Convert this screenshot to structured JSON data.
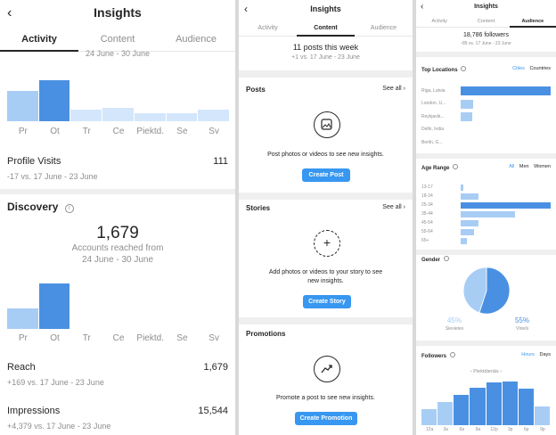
{
  "colors": {
    "accent": "#3897f0",
    "bar_dark": "#4a90e2",
    "bar_light": "#a8cdf5",
    "bar_faint": "#d3e6fb"
  },
  "p1": {
    "title": "Insights",
    "back_icon": "chevron-left-icon",
    "tabs": [
      "Activity",
      "Content",
      "Audience"
    ],
    "top_range": "24 June - 30 June",
    "days": [
      "Pr",
      "Ot",
      "Tr",
      "Ce",
      "Piektd.",
      "Se",
      "Sv"
    ],
    "chart1_levels": [
      0.52,
      0.7,
      0.2,
      0.22,
      0.13,
      0.14,
      0.2
    ],
    "profile_visits_label": "Profile Visits",
    "profile_visits_value": "111",
    "profile_visits_change": "-17 vs. 17 June - 23 June",
    "discovery_title": "Discovery",
    "reach_count": "1,679",
    "reach_text_1": "Accounts reached from",
    "reach_text_2": "24 June - 30 June",
    "chart2_levels": [
      0.46,
      1.0,
      0.0,
      0.0,
      0.0,
      0.0,
      0.0
    ],
    "reach_label": "Reach",
    "reach_value": "1,679",
    "reach_change": "+169 vs. 17 June - 23 June",
    "impressions_label": "Impressions",
    "impressions_value": "15,544",
    "impressions_change": "+4,379 vs. 17 June - 23 June"
  },
  "p2": {
    "title": "Insights",
    "tabs": [
      "Activity",
      "Content",
      "Audience"
    ],
    "posts_week": "11 posts this week",
    "posts_change": "+1 vs. 17 June - 23 June",
    "posts_title": "Posts",
    "see_all": "See all",
    "posts_text": "Post photos or videos to see new insights.",
    "create_post": "Create Post",
    "stories_title": "Stories",
    "stories_text_1": "Add photos or videos to your story to see",
    "stories_text_2": "new insights.",
    "create_story": "Create Story",
    "promotions_title": "Promotions",
    "promotions_text": "Promote a post to see new insights.",
    "create_promotion": "Create Promotion"
  },
  "p3": {
    "title": "Insights",
    "tabs": [
      "Activity",
      "Content",
      "Audience"
    ],
    "followers_count": "18,786 followers",
    "followers_change": "-85 vs. 17 June - 23 June",
    "top_locations_title": "Top Locations",
    "loc_toggle": [
      "Cities",
      "Countries"
    ],
    "locations": [
      "Riga, Latvia",
      "London, U...",
      "Reykjavik...",
      "Delhi, India",
      "Berlin, G..."
    ],
    "location_levels": [
      1.0,
      0.14,
      0.13,
      0.0,
      0.0
    ],
    "age_title": "Age Range",
    "age_toggle": [
      "All",
      "Men",
      "Women"
    ],
    "ages": [
      "13-17",
      "18-24",
      "25-34",
      "35-44",
      "45-54",
      "55-64",
      "65+"
    ],
    "age_levels": [
      0.03,
      0.2,
      1.0,
      0.6,
      0.2,
      0.15,
      0.07
    ],
    "gender_title": "Gender",
    "gender_female_pct": "45%",
    "gender_female_label": "Sievietes",
    "gender_male_pct": "55%",
    "gender_male_label": "Vīrieši",
    "gender_female_value": 45,
    "followers_title": "Followers",
    "fol_toggle": [
      "Hours",
      "Days"
    ],
    "day_nav": "Piektdienās",
    "hours": [
      "12a",
      "3a",
      "6a",
      "9a",
      "12p",
      "3p",
      "6p",
      "9p"
    ],
    "hour_levels": [
      0.35,
      0.5,
      0.65,
      0.8,
      0.92,
      0.95,
      0.78,
      0.4
    ]
  }
}
